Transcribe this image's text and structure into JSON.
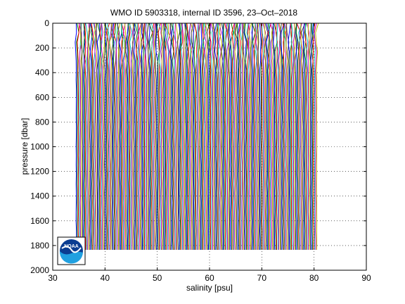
{
  "chart_data": {
    "type": "line",
    "title": "WMO ID 5903318, internal ID 3596, 23–Oct–2018",
    "xlabel": "salinity [psu]",
    "ylabel": "pressure [dbar]",
    "xlim": [
      30,
      90
    ],
    "ylim": [
      0,
      2000
    ],
    "y_reversed": true,
    "grid": true,
    "grid_style": "dotted",
    "xticks": [
      30,
      40,
      50,
      60,
      70,
      80,
      90
    ],
    "yticks": [
      0,
      200,
      400,
      600,
      800,
      1000,
      1200,
      1400,
      1600,
      1800,
      2000
    ],
    "xtick_labels": [
      "30",
      "40",
      "50",
      "60",
      "70",
      "80",
      "90"
    ],
    "ytick_labels": [
      "0",
      "200",
      "400",
      "600",
      "800",
      "1000",
      "1200",
      "1400",
      "1600",
      "1800",
      "2000"
    ],
    "series_description": "many overlaid salinity profiles, each offset in x, spanning x 34.5 to 80.5 and pressure 0 to 1835",
    "profile_x_start": 34.5,
    "profile_x_end": 80.5,
    "profile_count": 230,
    "profile_max_pressure": 1835,
    "series_colors": [
      "#0000ff",
      "#008000",
      "#ff0000",
      "#00bfbf",
      "#bf00bf",
      "#bfbf00",
      "#404040"
    ],
    "logo": {
      "text": "NOAA",
      "icon": "noaa-logo-icon",
      "colors": [
        "#0a3d91",
        "#20a0e0",
        "#ffffff"
      ]
    }
  }
}
